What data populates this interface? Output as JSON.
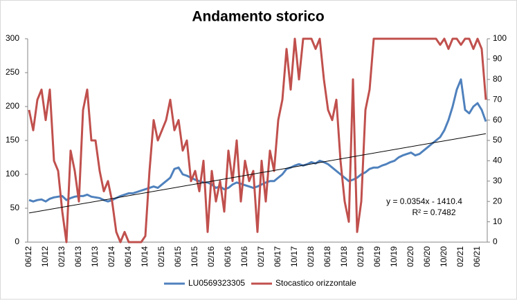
{
  "chart_data": {
    "type": "line",
    "title": "Andamento storico",
    "categories": [
      "06/12",
      null,
      null,
      null,
      "10/12",
      null,
      null,
      null,
      "02/13",
      null,
      null,
      null,
      "06/13",
      null,
      null,
      null,
      "10/13",
      null,
      null,
      null,
      "02/14",
      null,
      null,
      null,
      "06/14",
      null,
      null,
      null,
      "10/14",
      null,
      null,
      null,
      "02/15",
      null,
      null,
      null,
      "06/15",
      null,
      null,
      null,
      "10/15",
      null,
      null,
      null,
      "02/16",
      null,
      null,
      null,
      "06/16",
      null,
      null,
      null,
      "10/16",
      null,
      null,
      null,
      "02/17",
      null,
      null,
      null,
      "06/17",
      null,
      null,
      null,
      "10/17",
      null,
      null,
      null,
      "02/18",
      null,
      null,
      null,
      "06/18",
      null,
      null,
      null,
      "10/18",
      null,
      null,
      null,
      "02/19",
      null,
      null,
      null,
      "06/19",
      null,
      null,
      null,
      "10/19",
      null,
      null,
      null,
      "02/20",
      null,
      null,
      null,
      "06/20",
      null,
      null,
      null,
      "10/20",
      null,
      null,
      null,
      "02/21",
      null,
      null,
      null,
      "06/21",
      null,
      null
    ],
    "series": [
      {
        "name": "LU0569323305",
        "color": "#4f81bd",
        "values": [
          62,
          60,
          62,
          63,
          60,
          64,
          66,
          67,
          68,
          62,
          65,
          67,
          68,
          68,
          70,
          67,
          66,
          65,
          62,
          60,
          62,
          65,
          68,
          70,
          72,
          72,
          74,
          76,
          78,
          80,
          82,
          80,
          85,
          90,
          95,
          108,
          110,
          100,
          98,
          95,
          92,
          90,
          88,
          88,
          85,
          80,
          82,
          78,
          80,
          85,
          88,
          86,
          84,
          82,
          80,
          82,
          85,
          88,
          90,
          90,
          95,
          100,
          108,
          110,
          113,
          115,
          113,
          115,
          118,
          116,
          120,
          118,
          115,
          110,
          105,
          100,
          95,
          90,
          92,
          95,
          100,
          103,
          108,
          110,
          110,
          113,
          115,
          118,
          120,
          125,
          128,
          130,
          132,
          128,
          130,
          135,
          140,
          145,
          150,
          155,
          165,
          180,
          200,
          225,
          240,
          195,
          190,
          200,
          205,
          195,
          178
        ]
      },
      {
        "name": "Stocastico orizzontale",
        "color": "#c0504d",
        "axis": "y2",
        "values": [
          65,
          55,
          70,
          75,
          60,
          75,
          40,
          35,
          15,
          0,
          45,
          35,
          20,
          65,
          75,
          50,
          50,
          35,
          25,
          30,
          20,
          5,
          0,
          5,
          0,
          0,
          0,
          0,
          3,
          35,
          60,
          50,
          55,
          60,
          70,
          55,
          60,
          45,
          50,
          30,
          35,
          25,
          40,
          5,
          35,
          20,
          30,
          15,
          45,
          30,
          50,
          20,
          40,
          30,
          35,
          5,
          40,
          20,
          45,
          35,
          60,
          70,
          95,
          75,
          100,
          80,
          100,
          100,
          100,
          95,
          100,
          80,
          65,
          60,
          70,
          40,
          20,
          10,
          80,
          5,
          20,
          65,
          75,
          100,
          100,
          100,
          100,
          100,
          100,
          100,
          100,
          100,
          100,
          100,
          100,
          100,
          100,
          100,
          100,
          97,
          100,
          95,
          100,
          100,
          97,
          100,
          100,
          95,
          100,
          95,
          70
        ]
      }
    ],
    "trendline": {
      "start": 43,
      "end": 160,
      "color": "#000000",
      "equation": "y = 0.0354x - 1410.4",
      "r_squared": "R² = 0.7482"
    },
    "ylim": [
      0,
      300
    ],
    "yticks": [
      0,
      50,
      100,
      150,
      200,
      250,
      300
    ],
    "y2lim": [
      0,
      100
    ],
    "y2ticks": [
      0,
      10,
      20,
      30,
      40,
      50,
      60,
      70,
      80,
      90,
      100
    ]
  }
}
